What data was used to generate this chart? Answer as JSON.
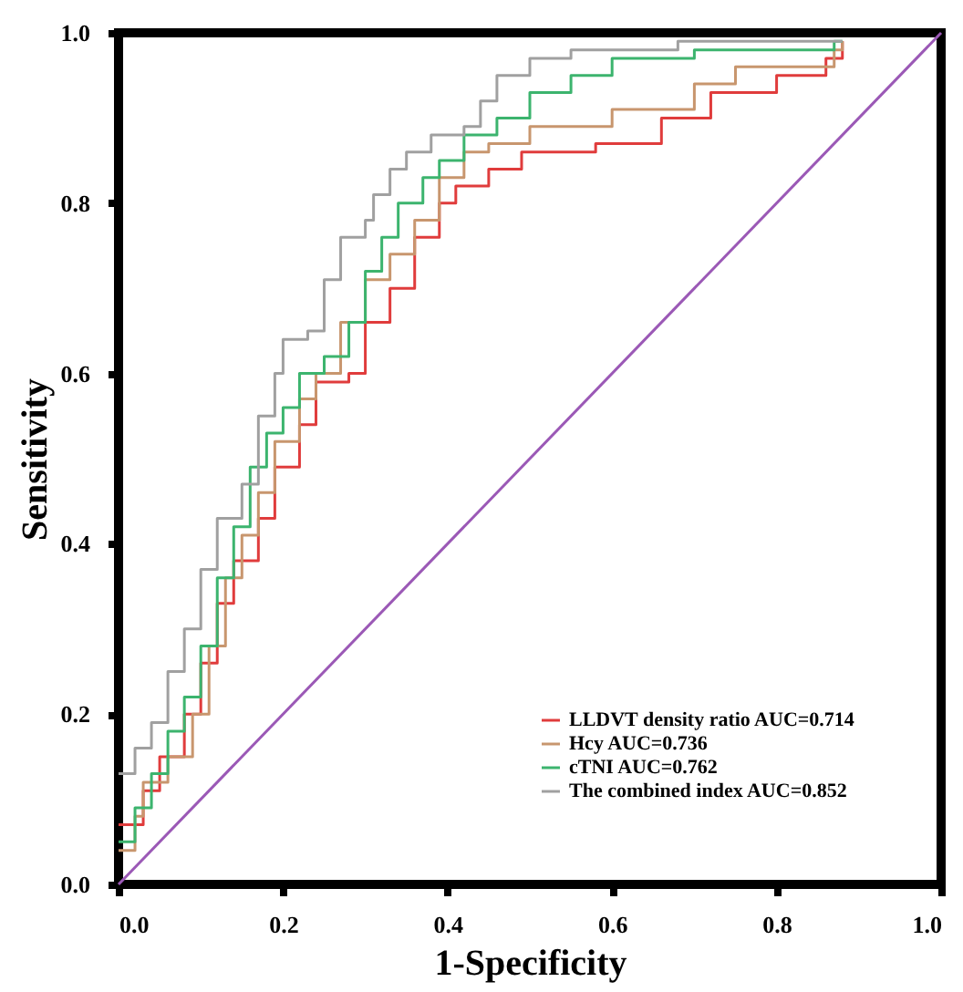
{
  "chart_data": {
    "type": "step",
    "xlabel": "1-Specificity",
    "ylabel": "Sensitivity",
    "xlim": [
      0,
      1
    ],
    "ylim": [
      0,
      1
    ],
    "xticks": [
      {
        "value": 0,
        "label": "0.0"
      },
      0.2,
      0.4,
      0.6,
      0.8,
      {
        "value": 1,
        "label": "1.0"
      }
    ],
    "yticks": [
      {
        "value": 0,
        "label": "0.0"
      },
      0.2,
      0.4,
      0.6,
      0.8,
      {
        "value": 1,
        "label": "1.0"
      }
    ],
    "grid": false,
    "legend": "bottom right",
    "line_style": "solid",
    "marker": "none",
    "series": [
      {
        "name": "LLDVT density ratio AUC=0.714",
        "color": "#e03c3c",
        "x": [
          0,
          0.03,
          0.05,
          0.08,
          0.1,
          0.12,
          0.14,
          0.17,
          0.19,
          0.22,
          0.24,
          0.28,
          0.3,
          0.33,
          0.36,
          0.39,
          0.41,
          0.45,
          0.49,
          0.58,
          0.66,
          0.72,
          0.8,
          0.86,
          0.88
        ],
        "values": [
          0.07,
          0.11,
          0.15,
          0.2,
          0.26,
          0.33,
          0.38,
          0.43,
          0.49,
          0.54,
          0.59,
          0.6,
          0.66,
          0.7,
          0.76,
          0.8,
          0.82,
          0.84,
          0.86,
          0.87,
          0.9,
          0.93,
          0.95,
          0.97,
          0.99
        ]
      },
      {
        "name": "Hcy AUC=0.736",
        "color": "#c8966e",
        "x": [
          0,
          0.02,
          0.03,
          0.06,
          0.09,
          0.11,
          0.13,
          0.15,
          0.17,
          0.19,
          0.22,
          0.24,
          0.27,
          0.3,
          0.33,
          0.36,
          0.39,
          0.42,
          0.45,
          0.5,
          0.6,
          0.7,
          0.75,
          0.87,
          0.88
        ],
        "values": [
          0.04,
          0.08,
          0.12,
          0.15,
          0.2,
          0.28,
          0.36,
          0.41,
          0.46,
          0.52,
          0.57,
          0.6,
          0.66,
          0.71,
          0.74,
          0.78,
          0.83,
          0.86,
          0.87,
          0.89,
          0.91,
          0.94,
          0.96,
          0.98,
          0.99
        ]
      },
      {
        "name": "cTNI AUC=0.762",
        "color": "#3cb46e",
        "x": [
          0,
          0.02,
          0.04,
          0.06,
          0.08,
          0.1,
          0.12,
          0.14,
          0.16,
          0.18,
          0.2,
          0.22,
          0.25,
          0.28,
          0.3,
          0.32,
          0.34,
          0.37,
          0.39,
          0.42,
          0.46,
          0.5,
          0.55,
          0.6,
          0.7,
          0.87,
          0.88
        ],
        "values": [
          0.05,
          0.09,
          0.13,
          0.18,
          0.22,
          0.28,
          0.36,
          0.42,
          0.49,
          0.53,
          0.56,
          0.6,
          0.62,
          0.66,
          0.72,
          0.76,
          0.8,
          0.83,
          0.85,
          0.88,
          0.9,
          0.93,
          0.95,
          0.97,
          0.98,
          0.99,
          0.99
        ]
      },
      {
        "name": "The combined index AUC=0.852",
        "color": "#a0a0a0",
        "x": [
          0,
          0.02,
          0.04,
          0.06,
          0.08,
          0.1,
          0.12,
          0.15,
          0.17,
          0.19,
          0.2,
          0.23,
          0.25,
          0.27,
          0.3,
          0.31,
          0.33,
          0.35,
          0.38,
          0.42,
          0.44,
          0.46,
          0.5,
          0.55,
          0.68,
          0.88
        ],
        "values": [
          0.13,
          0.16,
          0.19,
          0.25,
          0.3,
          0.37,
          0.43,
          0.47,
          0.55,
          0.6,
          0.64,
          0.65,
          0.71,
          0.76,
          0.78,
          0.81,
          0.84,
          0.86,
          0.88,
          0.89,
          0.92,
          0.95,
          0.97,
          0.98,
          0.99,
          0.99
        ]
      },
      {
        "type": "line",
        "color": "#9b59b6",
        "x": [
          0,
          1
        ],
        "values": [
          0,
          1
        ]
      }
    ]
  }
}
